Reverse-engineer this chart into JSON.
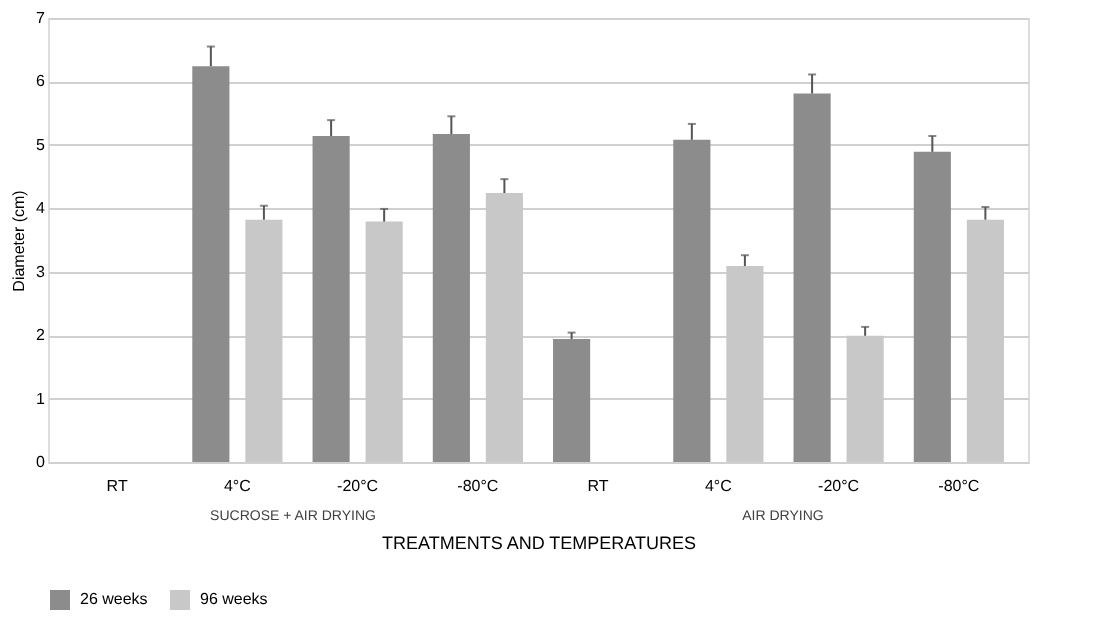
{
  "chart_data": {
    "type": "bar",
    "xlabel": "TREATMENTS AND TEMPERATURES",
    "ylabel": "Diameter (cm)",
    "categories": [
      "RT",
      "4°C",
      "-20°C",
      "-80°C",
      "RT",
      "4°C",
      "-20°C",
      "-80°C"
    ],
    "series": [
      {
        "name": "26 weeks",
        "color": "#8c8c8c",
        "values": [
          null,
          6.24,
          5.14,
          5.17,
          1.94,
          5.08,
          5.81,
          4.89
        ],
        "errors": [
          null,
          0.31,
          0.25,
          0.28,
          0.1,
          0.25,
          0.3,
          0.25
        ]
      },
      {
        "name": "96 weeks",
        "color": "#c8c8c8",
        "values": [
          null,
          3.82,
          3.79,
          4.24,
          null,
          3.09,
          1.99,
          3.82
        ],
        "errors": [
          null,
          0.22,
          0.2,
          0.22,
          null,
          0.17,
          0.14,
          0.2
        ]
      }
    ],
    "annotations": [
      "SUCROSE + AIR DRYING",
      "AIR DRYING"
    ],
    "ylim": [
      0,
      7
    ],
    "yticks": [
      0,
      1,
      2,
      3,
      4,
      5,
      6,
      7
    ],
    "grid": "y",
    "legend": "bottom"
  }
}
